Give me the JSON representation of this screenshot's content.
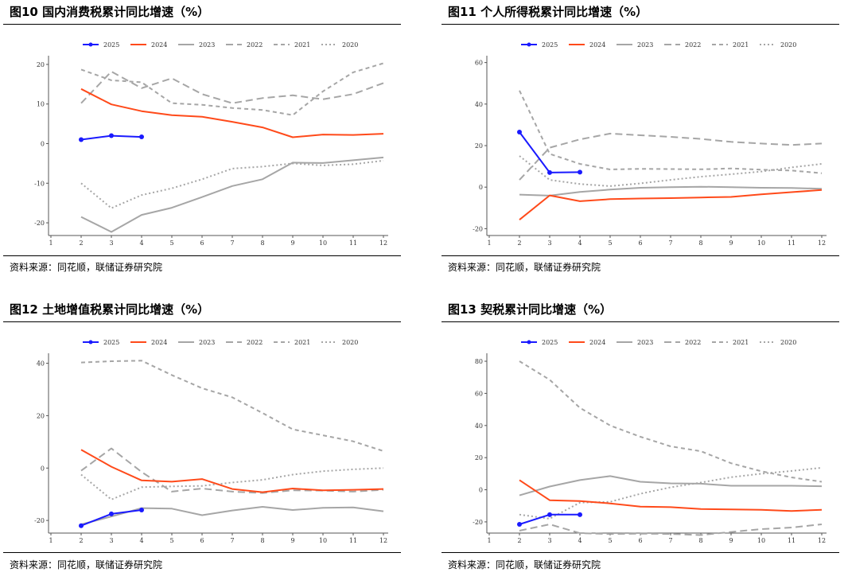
{
  "source_label": "资料来源：同花顺，联储证券研究院",
  "legend": [
    "2025",
    "2024",
    "2023",
    "2022",
    "2021",
    "2020"
  ],
  "colors": {
    "2025": "#1a1aff",
    "2024": "#ff4a1a",
    "2023": "#a6a6a6",
    "2022": "#a6a6a6",
    "2021": "#a6a6a6",
    "2020": "#a6a6a6"
  },
  "chart_data": [
    {
      "type": "line",
      "title": "图10 国内消费税累计同比增速（%）",
      "x": [
        1,
        2,
        3,
        4,
        5,
        6,
        7,
        8,
        9,
        10,
        11,
        12
      ],
      "ylim": [
        -22,
        21
      ],
      "yticks": [
        20,
        10,
        0,
        -10,
        -20
      ],
      "series": [
        {
          "name": "2025",
          "x": [
            2,
            3,
            4
          ],
          "values": [
            1,
            2,
            1.7
          ]
        },
        {
          "name": "2024",
          "x": [
            2,
            3,
            4,
            5,
            6,
            7,
            8,
            9,
            10,
            11,
            12
          ],
          "values": [
            13.8,
            9.9,
            8.2,
            7.2,
            6.8,
            5.5,
            4.1,
            1.6,
            2.3,
            2.2,
            2.5
          ]
        },
        {
          "name": "2023",
          "x": [
            2,
            3,
            4,
            5,
            6,
            7,
            8,
            9,
            10,
            11,
            12
          ],
          "values": [
            -18.5,
            -22.3,
            -18,
            -16.2,
            -13.5,
            -10.7,
            -9,
            -4.8,
            -4.9,
            -4.2,
            -3.5
          ]
        },
        {
          "name": "2022",
          "x": [
            2,
            3,
            4,
            5,
            6,
            7,
            8,
            9,
            10,
            11,
            12
          ],
          "values": [
            10.2,
            18.2,
            14,
            16.5,
            12.5,
            10.2,
            11.5,
            12.2,
            11.2,
            12.5,
            15.3
          ]
        },
        {
          "name": "2021",
          "x": [
            2,
            3,
            4,
            5,
            6,
            7,
            8,
            9,
            10,
            11,
            12
          ],
          "values": [
            18.7,
            16,
            15.5,
            10.2,
            9.8,
            9,
            8.5,
            7.2,
            13.2,
            18,
            20.3
          ]
        },
        {
          "name": "2020",
          "x": [
            2,
            3,
            4,
            5,
            6,
            7,
            8,
            9,
            10,
            11,
            12
          ],
          "values": [
            -10,
            -16.3,
            -13,
            -11.3,
            -9,
            -6.3,
            -5.8,
            -5,
            -5.5,
            -5.2,
            -4.3
          ]
        }
      ]
    },
    {
      "type": "line",
      "title": "图11 个人所得税累计同比增速（%）",
      "x": [
        1,
        2,
        3,
        4,
        5,
        6,
        7,
        8,
        9,
        10,
        11,
        12
      ],
      "ylim": [
        -21,
        61
      ],
      "yticks": [
        60,
        40,
        20,
        0,
        -20
      ],
      "series": [
        {
          "name": "2025",
          "x": [
            2,
            3,
            4
          ],
          "values": [
            26.5,
            7,
            7.2
          ]
        },
        {
          "name": "2024",
          "x": [
            2,
            3,
            4,
            5,
            6,
            7,
            8,
            9,
            10,
            11,
            12
          ],
          "values": [
            -15.7,
            -4,
            -6.8,
            -5.8,
            -5.5,
            -5.3,
            -5,
            -4.7,
            -3.5,
            -2.4,
            -1.4
          ]
        },
        {
          "name": "2023",
          "x": [
            2,
            3,
            4,
            5,
            6,
            7,
            8,
            9,
            10,
            11,
            12
          ],
          "values": [
            -3.6,
            -4.1,
            -2.3,
            -1.2,
            -0.3,
            0,
            0.2,
            0,
            -0.3,
            -0.4,
            -0.8
          ]
        },
        {
          "name": "2022",
          "x": [
            2,
            3,
            4,
            5,
            6,
            7,
            8,
            9,
            10,
            11,
            12
          ],
          "values": [
            3.5,
            19,
            23,
            25.8,
            25,
            24.2,
            23.2,
            21.8,
            21,
            20.3,
            21
          ]
        },
        {
          "name": "2021",
          "x": [
            2,
            3,
            4,
            5,
            6,
            7,
            8,
            9,
            10,
            11,
            12
          ],
          "values": [
            46.5,
            16,
            11.2,
            8.5,
            8.8,
            8.7,
            8.6,
            9,
            8.4,
            8,
            6.7
          ]
        },
        {
          "name": "2020",
          "x": [
            2,
            3,
            4,
            5,
            6,
            7,
            8,
            9,
            10,
            11,
            12
          ],
          "values": [
            15,
            3.5,
            1.5,
            0.5,
            1.8,
            3.5,
            5,
            6.2,
            7.5,
            9.5,
            11.2
          ]
        }
      ]
    },
    {
      "type": "line",
      "title": "图12 土地增值税累计同比增速（%）",
      "x": [
        1,
        2,
        3,
        4,
        5,
        6,
        7,
        8,
        9,
        10,
        11,
        12
      ],
      "ylim": [
        -23,
        42
      ],
      "yticks": [
        40,
        20,
        0,
        -20
      ],
      "series": [
        {
          "name": "2025",
          "x": [
            2,
            3,
            4
          ],
          "values": [
            -22,
            -17.5,
            -16
          ]
        },
        {
          "name": "2024",
          "x": [
            2,
            3,
            4,
            5,
            6,
            7,
            8,
            9,
            10,
            11,
            12
          ],
          "values": [
            7,
            0.5,
            -4.7,
            -5.2,
            -4.2,
            -8,
            -9.2,
            -7.8,
            -8.5,
            -8.3,
            -8
          ]
        },
        {
          "name": "2023",
          "x": [
            2,
            3,
            4,
            5,
            6,
            7,
            8,
            9,
            10,
            11,
            12
          ],
          "values": [
            -21.5,
            -18.5,
            -15.3,
            -15.5,
            -18,
            -16.2,
            -14.8,
            -16,
            -15.2,
            -15,
            -16.5
          ]
        },
        {
          "name": "2022",
          "x": [
            2,
            3,
            4,
            5,
            6,
            7,
            8,
            9,
            10,
            11,
            12
          ],
          "values": [
            -1,
            7.5,
            -1.5,
            -9,
            -7.8,
            -9,
            -9.5,
            -8.5,
            -8.6,
            -9,
            -8.3
          ]
        },
        {
          "name": "2021",
          "x": [
            2,
            3,
            4,
            5,
            6,
            7,
            8,
            9,
            10,
            11,
            12
          ],
          "values": [
            40.3,
            40.8,
            41,
            35.5,
            30.5,
            27,
            21,
            14.8,
            12.5,
            10.2,
            6.5
          ]
        },
        {
          "name": "2020",
          "x": [
            2,
            3,
            4,
            5,
            6,
            7,
            8,
            9,
            10,
            11,
            12
          ],
          "values": [
            -2.5,
            -12,
            -7.3,
            -7,
            -6.8,
            -5.5,
            -4.5,
            -2.5,
            -1.2,
            -0.5,
            0
          ]
        }
      ]
    },
    {
      "type": "line",
      "title": "图13 契税累计同比增速（%）",
      "x": [
        1,
        2,
        3,
        4,
        5,
        6,
        7,
        8,
        9,
        10,
        11,
        12
      ],
      "ylim": [
        -24,
        82
      ],
      "yticks": [
        80,
        60,
        40,
        20,
        0,
        -20
      ],
      "series": [
        {
          "name": "2025",
          "x": [
            2,
            3,
            4
          ],
          "values": [
            -21.5,
            -15.5,
            -15.5
          ]
        },
        {
          "name": "2024",
          "x": [
            2,
            3,
            4,
            5,
            6,
            7,
            8,
            9,
            10,
            11,
            12
          ],
          "values": [
            6,
            -6.5,
            -7,
            -8.5,
            -10.5,
            -10.8,
            -12,
            -12.2,
            -12.5,
            -13.2,
            -12.5
          ]
        },
        {
          "name": "2023",
          "x": [
            2,
            3,
            4,
            5,
            6,
            7,
            8,
            9,
            10,
            11,
            12
          ],
          "values": [
            -3.5,
            2,
            6,
            8.5,
            5,
            4,
            3.8,
            2.5,
            2.5,
            2.5,
            2.2
          ]
        },
        {
          "name": "2022",
          "x": [
            2,
            3,
            4,
            5,
            6,
            7,
            8,
            9,
            10,
            11,
            12
          ],
          "values": [
            -25.5,
            -21.5,
            -27,
            -27.5,
            -27.3,
            -27.5,
            -28.2,
            -26.3,
            -24.5,
            -23.5,
            -21.5
          ]
        },
        {
          "name": "2021",
          "x": [
            2,
            3,
            4,
            5,
            6,
            7,
            8,
            9,
            10,
            11,
            12
          ],
          "values": [
            80,
            68.5,
            51,
            40,
            33,
            27,
            24,
            16.5,
            11.5,
            7.7,
            5
          ]
        },
        {
          "name": "2020",
          "x": [
            2,
            3,
            4,
            5,
            6,
            7,
            8,
            9,
            10,
            11,
            12
          ],
          "values": [
            -15.5,
            -18,
            -8,
            -7.5,
            -2.5,
            1.5,
            4.5,
            7.8,
            10,
            11.7,
            13.7
          ]
        }
      ]
    }
  ]
}
